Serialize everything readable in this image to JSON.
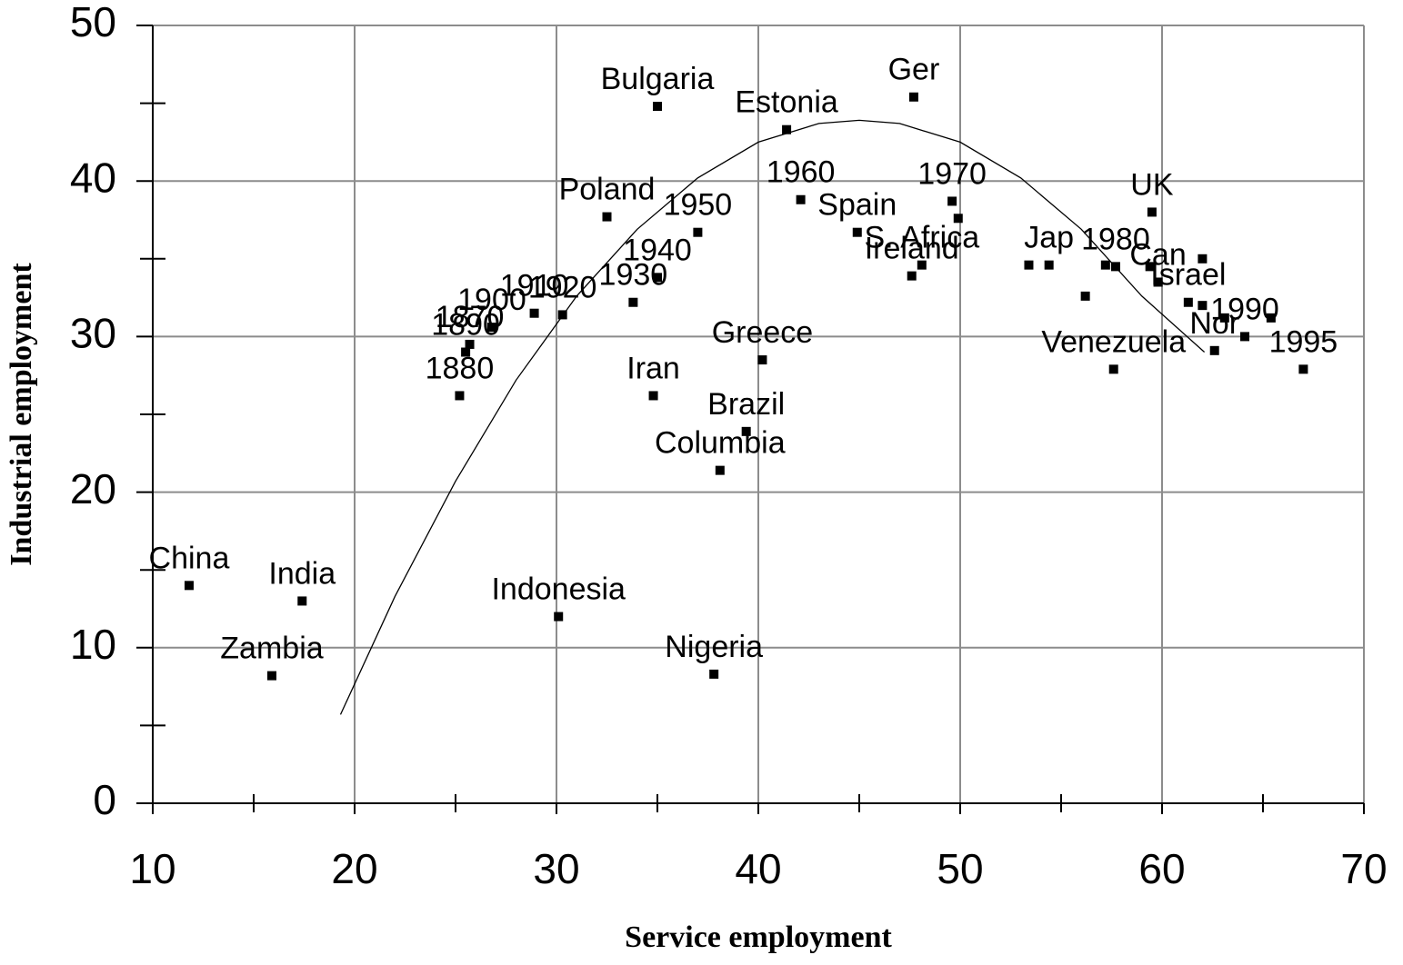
{
  "chart_data": {
    "type": "scatter",
    "x_label": "Service employment",
    "y_label": "Industrial employment",
    "xlim": [
      10,
      70
    ],
    "xticks": [
      10,
      20,
      30,
      40,
      50,
      60,
      70
    ],
    "ylim": [
      0,
      50
    ],
    "yticks": [
      0,
      10,
      20,
      30,
      40,
      50
    ],
    "grid": true,
    "color": "#000000",
    "x": [
      11.8,
      17.4,
      15.9,
      30.1,
      37.8,
      38.1,
      39.4,
      40.2,
      34.8,
      25.2,
      25.5,
      25.7,
      26.8,
      28.9,
      30.3,
      33.8,
      35.0,
      37.0,
      32.5,
      35.0,
      41.4,
      42.1,
      44.9,
      48.1,
      47.6,
      47.7,
      49.6,
      49.9,
      53.4,
      54.4,
      57.7,
      57.2,
      56.2,
      57.6,
      59.5,
      59.4,
      59.8,
      61.3,
      62.0,
      62.0,
      63.1,
      65.4,
      62.6,
      64.1,
      67.0
    ],
    "values": [
      14.0,
      13.0,
      8.2,
      12.0,
      8.3,
      21.4,
      23.9,
      28.5,
      26.2,
      26.2,
      29.0,
      29.5,
      30.6,
      31.5,
      31.4,
      32.2,
      33.8,
      36.7,
      37.7,
      44.8,
      43.3,
      38.8,
      36.7,
      34.6,
      33.9,
      45.4,
      38.7,
      37.6,
      34.6,
      34.6,
      34.5,
      34.6,
      32.6,
      27.9,
      38.0,
      34.5,
      33.5,
      32.2,
      35.0,
      32.0,
      31.2,
      31.2,
      29.1,
      30.0,
      27.9
    ],
    "labels": [
      "China",
      "India",
      "Zambia",
      "Indonesia",
      "Nigeria",
      "Columbia",
      "Brazil",
      "Greece",
      "Iran",
      "1880",
      "1890",
      "1870",
      "1900",
      "1910",
      "1920",
      "1930",
      "1940",
      "1950",
      "Poland",
      "Bulgaria",
      "Estonia",
      "1960",
      "Spain",
      "S. Africa",
      "Ireland",
      "Ger",
      "1970",
      null,
      null,
      "Jap",
      "1980",
      null,
      null,
      "Venezuela",
      "UK",
      null,
      "Can",
      "Israel",
      null,
      null,
      null,
      null,
      "Nor",
      "1990",
      "1995"
    ],
    "trend": {
      "x": [
        19.3,
        22,
        25,
        28,
        31,
        34,
        37,
        40,
        43,
        45,
        47,
        50,
        53,
        56,
        59,
        62.1
      ],
      "y": [
        5.7,
        13.3,
        20.7,
        27.2,
        32.6,
        36.9,
        40.2,
        42.5,
        43.7,
        43.9,
        43.7,
        42.5,
        40.2,
        36.9,
        32.6,
        29.0
      ]
    }
  }
}
